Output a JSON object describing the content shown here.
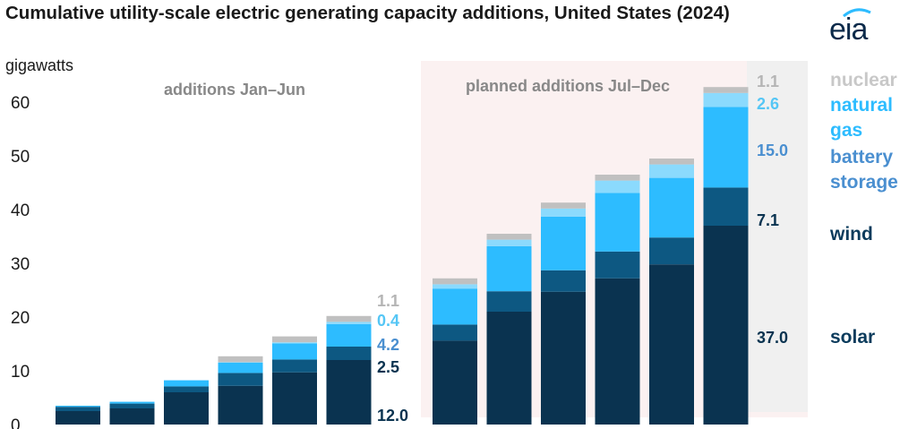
{
  "title": "Cumulative utility-scale electric generating capacity additions, United States (2024)",
  "logo_text": "eia",
  "chart_data": {
    "type": "bar",
    "stacked": true,
    "ylabel": "gigawatts",
    "ylim": [
      0,
      65
    ],
    "yticks": [
      0,
      10,
      20,
      30,
      40,
      50,
      60
    ],
    "grid": false,
    "legend": "right",
    "periods": [
      {
        "label": "additions Jan–Jun",
        "shaded": false
      },
      {
        "label": "planned additions Jul–Dec",
        "shaded": true
      }
    ],
    "bars_per_period": [
      6,
      6
    ],
    "series": [
      {
        "name": "solar",
        "color": "#0a3350",
        "values": [
          2.5,
          3.0,
          6.0,
          7.2,
          9.7,
          12.0,
          15.6,
          21.0,
          24.7,
          27.2,
          29.8,
          37.0
        ]
      },
      {
        "name": "wind",
        "color": "#0d5882",
        "values": [
          0.8,
          0.9,
          1.1,
          2.4,
          2.4,
          2.5,
          3.0,
          3.8,
          4.0,
          5.0,
          5.0,
          7.1
        ]
      },
      {
        "name": "battery storage",
        "color": "#2dbcff",
        "values": [
          0.2,
          0.3,
          1.1,
          1.9,
          3.0,
          4.2,
          6.7,
          8.4,
          10.0,
          10.9,
          11.1,
          15.0
        ]
      },
      {
        "name": "natural gas",
        "color": "#8bdafd",
        "values": [
          0.0,
          0.1,
          0.1,
          0.1,
          0.2,
          0.4,
          0.8,
          1.2,
          1.5,
          2.3,
          2.5,
          2.6
        ]
      },
      {
        "name": "nuclear",
        "color": "#c0c0c0",
        "values": [
          0.0,
          0.0,
          0.0,
          1.1,
          1.1,
          1.1,
          1.1,
          1.1,
          1.1,
          1.1,
          1.1,
          1.1
        ]
      }
    ],
    "data_labels": [
      {
        "bar": 5,
        "labels": [
          "12.0",
          "2.5",
          "4.2",
          "0.4",
          "1.1"
        ]
      },
      {
        "bar": 11,
        "labels": [
          "37.0",
          "7.1",
          "15.0",
          "2.6",
          "1.1"
        ]
      }
    ],
    "legend_entries": [
      {
        "series": "nuclear",
        "color": "#c8c8c8"
      },
      {
        "series": "natural gas",
        "color": "#2dbcff"
      },
      {
        "series": "battery storage",
        "color": "#4a8fd0"
      },
      {
        "series": "wind",
        "color": "#0b3b5c"
      },
      {
        "series": "solar",
        "color": "#0b3b5c"
      }
    ]
  }
}
